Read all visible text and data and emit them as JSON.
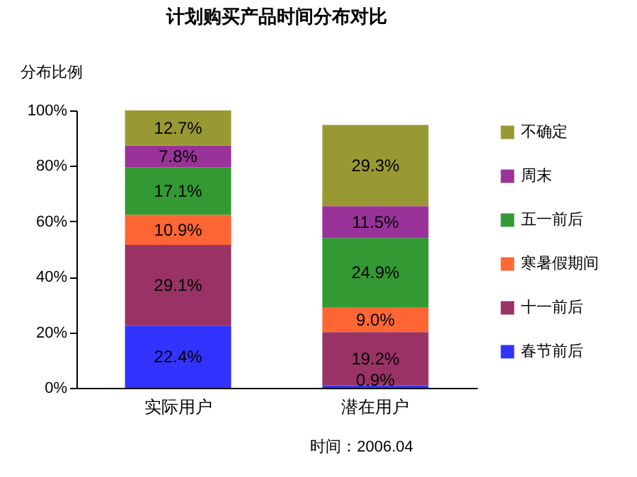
{
  "chart_data": {
    "type": "bar",
    "stacked": true,
    "title": "计划购买产品时间分布对比",
    "ylabel": "分布比例",
    "categories": [
      "实际用户",
      "潜在用户"
    ],
    "series": [
      {
        "name": "春节前后",
        "color": "#3333ff",
        "values": [
          22.4,
          0.9
        ],
        "value_labels": [
          "22.4%",
          "0.9%"
        ]
      },
      {
        "name": "十一前后",
        "color": "#993366",
        "values": [
          29.1,
          19.2
        ],
        "value_labels": [
          "29.1%",
          "19.2%"
        ]
      },
      {
        "name": "寒暑假期间",
        "color": "#ff6633",
        "values": [
          10.9,
          9.0
        ],
        "value_labels": [
          "10.9%",
          "9.0%"
        ]
      },
      {
        "name": "五一前后",
        "color": "#339933",
        "values": [
          17.1,
          24.9
        ],
        "value_labels": [
          "17.1%",
          "24.9%"
        ]
      },
      {
        "name": "周末",
        "color": "#993399",
        "values": [
          7.8,
          11.5
        ],
        "value_labels": [
          "7.8%",
          "11.5%"
        ]
      },
      {
        "name": "不确定",
        "color": "#999933",
        "values": [
          12.7,
          29.3
        ],
        "value_labels": [
          "12.7%",
          "29.3%"
        ]
      }
    ],
    "ylim": [
      0,
      100
    ],
    "yticks": [
      {
        "value": 0,
        "label": "0%"
      },
      {
        "value": 20,
        "label": "20%"
      },
      {
        "value": 40,
        "label": "40%"
      },
      {
        "value": 60,
        "label": "60%"
      },
      {
        "value": 80,
        "label": "80%"
      },
      {
        "value": 100,
        "label": "100%"
      }
    ],
    "grid": false,
    "legend": "right",
    "annotations": [
      "时间：2006.04"
    ]
  }
}
